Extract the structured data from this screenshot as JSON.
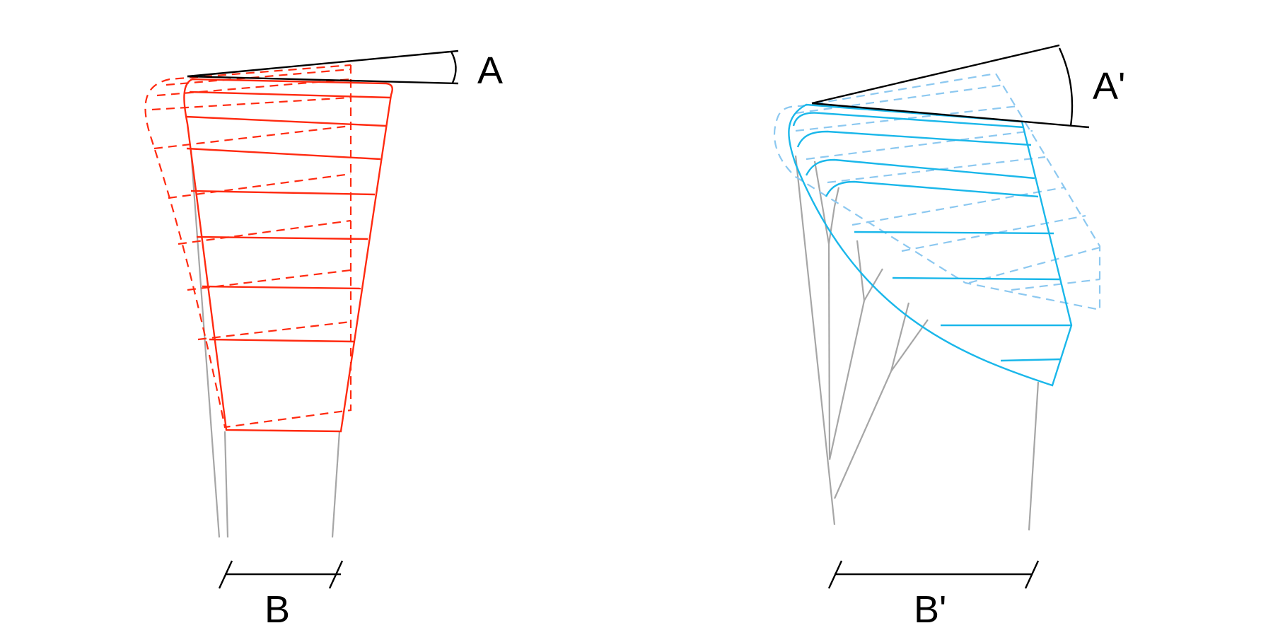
{
  "labels": {
    "angle_left": "A",
    "angle_right": "A'",
    "width_left": "B",
    "width_right": "B'"
  },
  "colors": {
    "left_structure": "#ff2a10",
    "right_structure": "#1ab7ea",
    "right_ghost": "#8cc8f0",
    "support_lines": "#a6a6a6",
    "annotation": "#000000"
  }
}
